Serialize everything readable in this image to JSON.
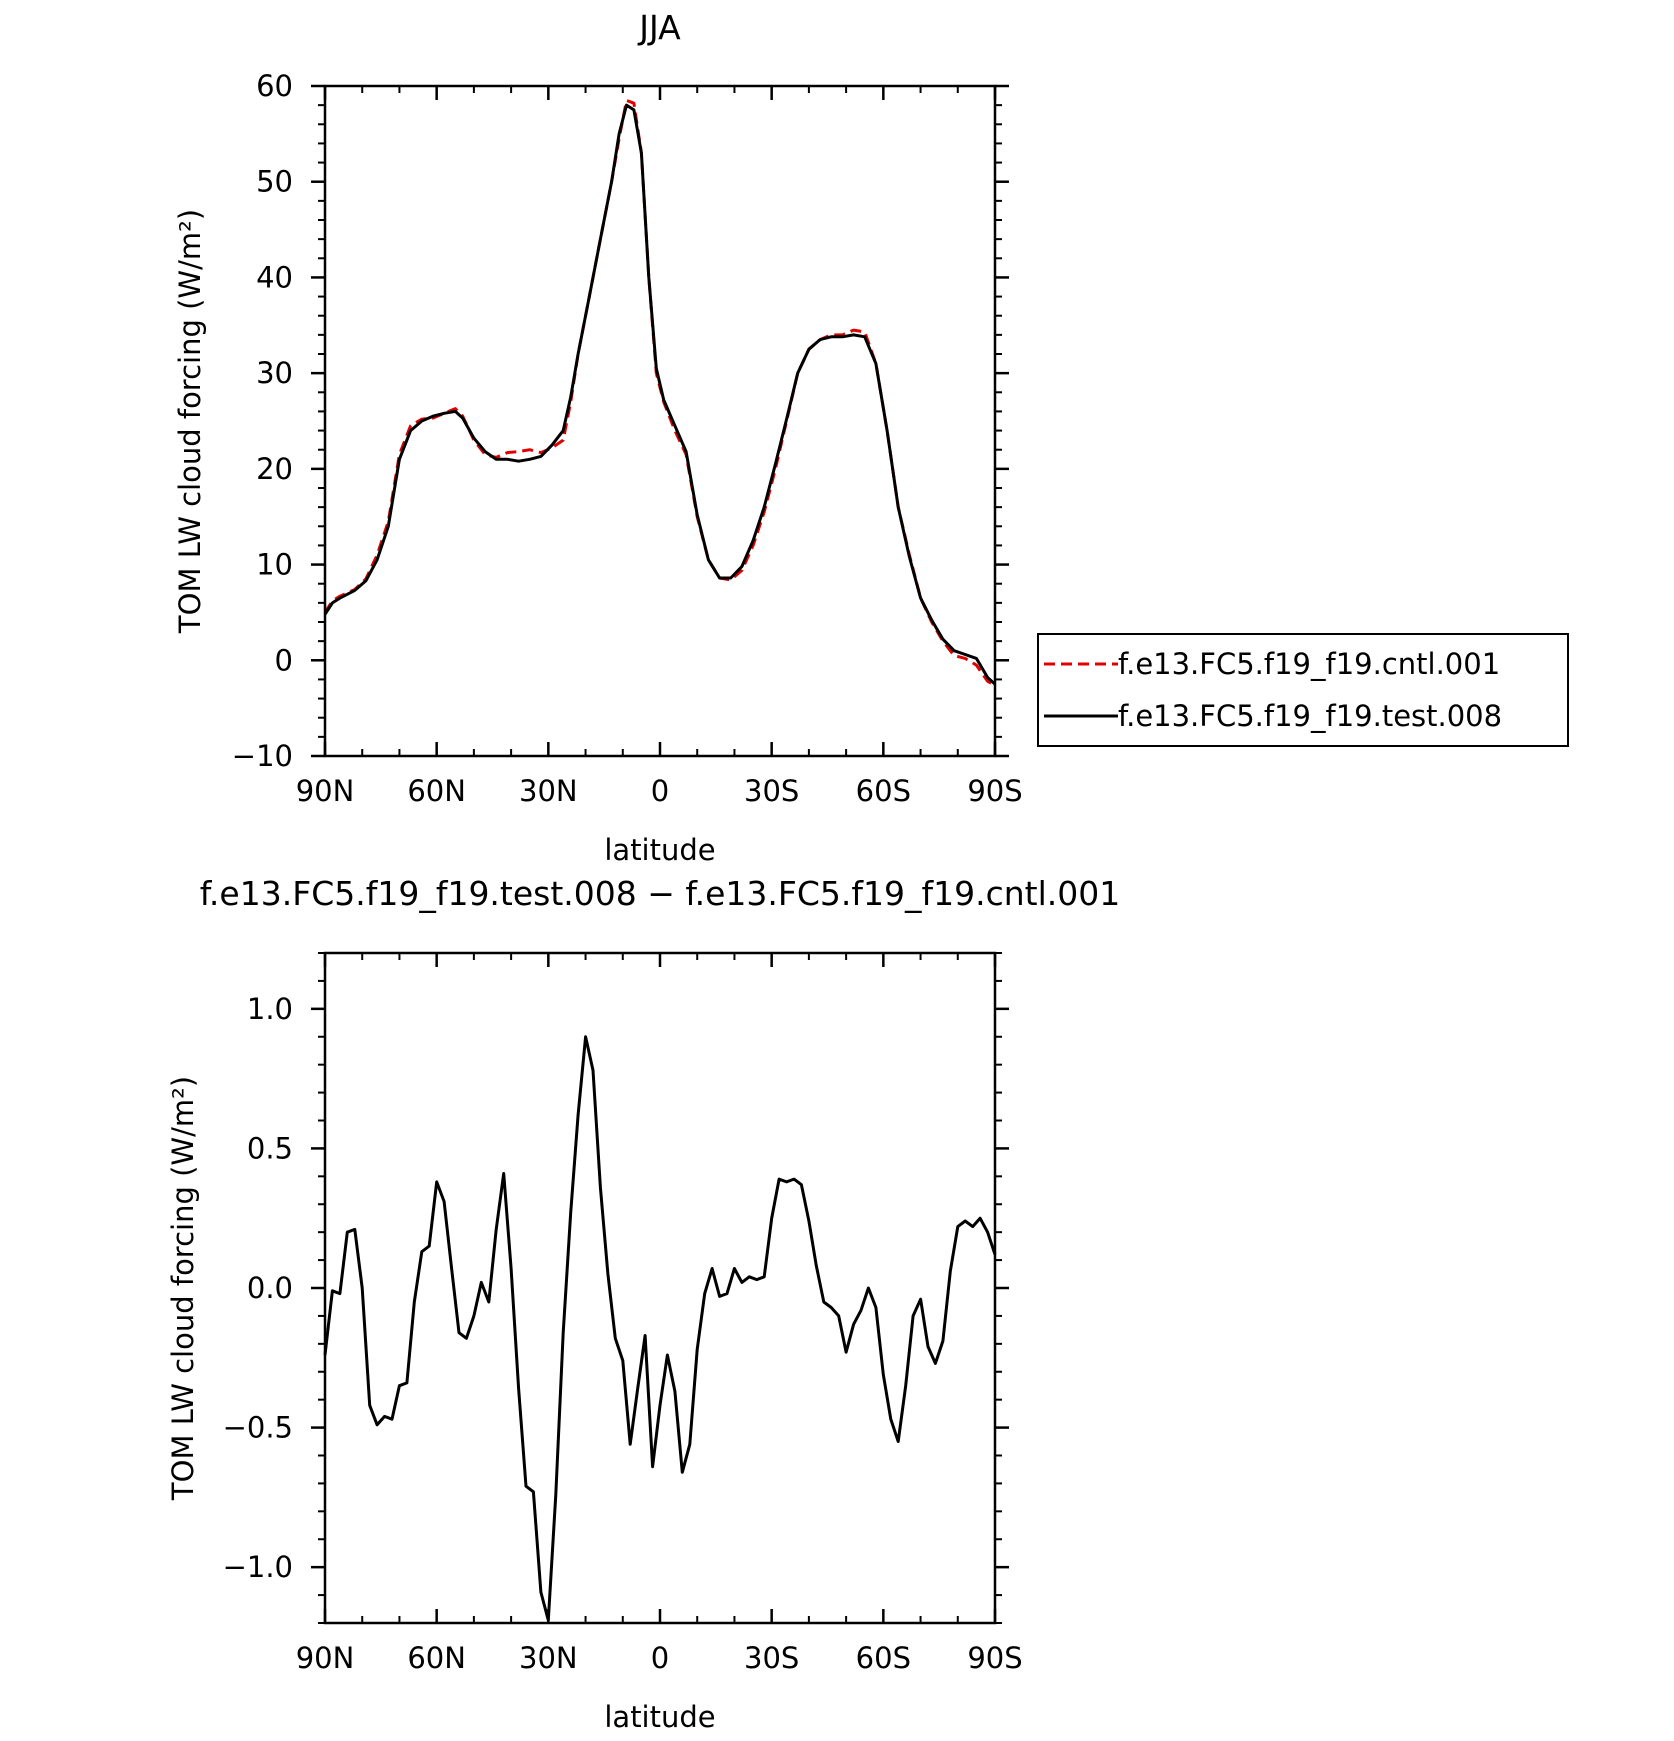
{
  "chart_data": [
    {
      "type": "line",
      "title": "JJA",
      "xlabel": "latitude",
      "ylabel": "TOM LW cloud forcing (W/m²)",
      "xlim": [
        90,
        -90
      ],
      "ylim": [
        -10,
        60
      ],
      "x_ticks": [
        90,
        60,
        30,
        0,
        -30,
        -60,
        -90
      ],
      "x_tick_labels": [
        "90N",
        "60N",
        "30N",
        "0",
        "30S",
        "60S",
        "90S"
      ],
      "y_ticks": [
        -10,
        0,
        10,
        20,
        30,
        40,
        50,
        60
      ],
      "y_tick_labels": [
        "−10",
        "0",
        "10",
        "20",
        "30",
        "40",
        "50",
        "60"
      ],
      "legend_position": "right",
      "series": [
        {
          "name": "f.e13.FC5.f19_f19.cntl.001",
          "color": "#e00000",
          "style": "dashed",
          "x": [
            90,
            88,
            86,
            82,
            79,
            76,
            73,
            70,
            67,
            64,
            61,
            58,
            55,
            53,
            50,
            47,
            44,
            41,
            38,
            35,
            32,
            29,
            26,
            24,
            22,
            19,
            16,
            13,
            11,
            9,
            7,
            5,
            3,
            1,
            -1,
            -4,
            -7,
            -10,
            -13,
            -16,
            -19,
            -22,
            -25,
            -28,
            -31,
            -34,
            -37,
            -40,
            -43,
            -46,
            -49,
            -52,
            -55,
            -58,
            -61,
            -64,
            -67,
            -70,
            -73,
            -76,
            -79,
            -82,
            -85,
            -88,
            -90
          ],
          "y": [
            5,
            6.2,
            6.7,
            7.4,
            8.5,
            11,
            14.5,
            21.5,
            24.5,
            25.2,
            25.3,
            25.8,
            26.3,
            25.5,
            23,
            21.5,
            21.2,
            21.7,
            21.8,
            22,
            21.7,
            22.2,
            23,
            27,
            32,
            38,
            44,
            50,
            54.5,
            58.5,
            58.2,
            53,
            40,
            30,
            27,
            24,
            21.5,
            15,
            10.5,
            8.6,
            8.4,
            9.4,
            12,
            15.5,
            20,
            25,
            30,
            32.5,
            33.5,
            34,
            34,
            34.5,
            34.3,
            31,
            24,
            16,
            11,
            6.5,
            4,
            2,
            0.5,
            0.2,
            -0.5,
            -2.2,
            -2.6
          ]
        },
        {
          "name": "f.e13.FC5.f19_f19.test.008",
          "color": "#000000",
          "style": "solid",
          "x": [
            90,
            88,
            86,
            82,
            79,
            76,
            73,
            70,
            67,
            64,
            61,
            58,
            55,
            53,
            50,
            47,
            44,
            41,
            38,
            35,
            32,
            29,
            26,
            24,
            22,
            19,
            16,
            13,
            11,
            9,
            7,
            5,
            3,
            1,
            -1,
            -4,
            -7,
            -10,
            -13,
            -16,
            -19,
            -22,
            -25,
            -28,
            -31,
            -34,
            -37,
            -40,
            -43,
            -46,
            -49,
            -52,
            -55,
            -58,
            -61,
            -64,
            -67,
            -70,
            -73,
            -76,
            -79,
            -82,
            -85,
            -88,
            -90
          ],
          "y": [
            4.8,
            6.0,
            6.5,
            7.3,
            8.3,
            10.5,
            14.0,
            21.0,
            24.0,
            25.0,
            25.5,
            25.8,
            26.0,
            25.3,
            23.2,
            21.8,
            21.0,
            21.0,
            20.8,
            21.0,
            21.3,
            22.5,
            24.0,
            27.5,
            32.0,
            38.0,
            44.0,
            50.0,
            55.0,
            58.0,
            57.5,
            53.0,
            40.0,
            30.5,
            27.2,
            24.5,
            21.8,
            15.2,
            10.5,
            8.6,
            8.6,
            9.8,
            12.5,
            16.0,
            20.5,
            25.2,
            30.0,
            32.5,
            33.5,
            33.8,
            33.8,
            34.0,
            33.8,
            31.0,
            24.0,
            16.0,
            10.8,
            6.5,
            4.2,
            2.2,
            1.0,
            0.6,
            0.2,
            -1.8,
            -2.5
          ]
        }
      ]
    },
    {
      "type": "line",
      "title": "f.e13.FC5.f19_f19.test.008 − f.e13.FC5.f19_f19.cntl.001",
      "xlabel": "latitude",
      "ylabel": "TOM LW cloud forcing (W/m²)",
      "xlim": [
        90,
        -90
      ],
      "ylim": [
        -1.2,
        1.2
      ],
      "x_ticks": [
        90,
        60,
        30,
        0,
        -30,
        -60,
        -90
      ],
      "x_tick_labels": [
        "90N",
        "60N",
        "30N",
        "0",
        "30S",
        "60S",
        "90S"
      ],
      "y_ticks": [
        -1.0,
        -0.5,
        0.0,
        0.5,
        1.0
      ],
      "y_tick_labels": [
        "−1.0",
        "−0.5",
        "0.0",
        "0.5",
        "1.0"
      ],
      "series": [
        {
          "color": "#000000",
          "style": "solid",
          "x": [
            90,
            88,
            86,
            84,
            82,
            80,
            78,
            76,
            74,
            72,
            70,
            68,
            66,
            64,
            62,
            60,
            58,
            56,
            54,
            52,
            50,
            48,
            46,
            44,
            42,
            40,
            38,
            36,
            34,
            32,
            30,
            28,
            26,
            24,
            22,
            20,
            18,
            16,
            14,
            12,
            10,
            8,
            6,
            4,
            2,
            0,
            -2,
            -4,
            -6,
            -8,
            -10,
            -12,
            -14,
            -16,
            -18,
            -20,
            -22,
            -24,
            -26,
            -28,
            -30,
            -32,
            -34,
            -36,
            -38,
            -40,
            -42,
            -44,
            -46,
            -48,
            -50,
            -52,
            -54,
            -56,
            -58,
            -60,
            -62,
            -64,
            -66,
            -68,
            -70,
            -72,
            -74,
            -76,
            -78,
            -80,
            -82,
            -84,
            -86,
            -88,
            -90
          ],
          "y": [
            -0.24,
            -0.01,
            -0.02,
            0.2,
            0.21,
            0.0,
            -0.42,
            -0.49,
            -0.46,
            -0.47,
            -0.35,
            -0.34,
            -0.05,
            0.13,
            0.15,
            0.38,
            0.31,
            0.07,
            -0.16,
            -0.18,
            -0.1,
            0.02,
            -0.05,
            0.21,
            0.41,
            0.07,
            -0.36,
            -0.71,
            -0.73,
            -1.09,
            -1.19,
            -0.74,
            -0.16,
            0.27,
            0.62,
            0.9,
            0.78,
            0.36,
            0.05,
            -0.18,
            -0.26,
            -0.56,
            -0.36,
            -0.17,
            -0.64,
            -0.42,
            -0.24,
            -0.37,
            -0.66,
            -0.56,
            -0.22,
            -0.02,
            0.07,
            -0.03,
            -0.02,
            0.07,
            0.02,
            0.04,
            0.03,
            0.04,
            0.25,
            0.39,
            0.38,
            0.39,
            0.37,
            0.24,
            0.08,
            -0.05,
            -0.07,
            -0.1,
            -0.23,
            -0.13,
            -0.08,
            0.0,
            -0.07,
            -0.31,
            -0.47,
            -0.55,
            -0.35,
            -0.1,
            -0.04,
            -0.21,
            -0.27,
            -0.19,
            0.06,
            0.22,
            0.24,
            0.22,
            0.25,
            0.2,
            0.12
          ]
        }
      ]
    }
  ]
}
